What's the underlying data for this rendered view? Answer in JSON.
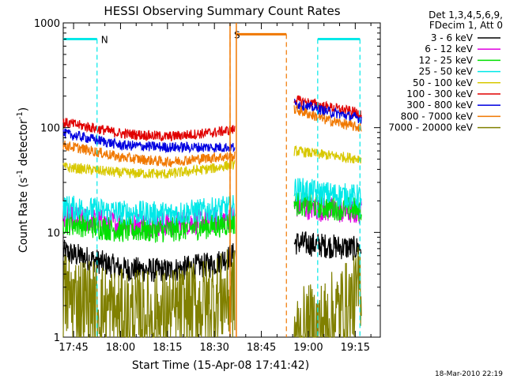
{
  "chart_data": {
    "type": "line",
    "title": "HESSI Observing Summary Count Rates",
    "xlabel": "Start Time (15-Apr-08 17:41:42)",
    "ylabel_main": "Count Rate (s",
    "ylabel_sup1": "-1",
    "ylabel_mid": " detector",
    "ylabel_sup2": "-1",
    "ylabel_end": ")",
    "y_scale": "log",
    "ylim": [
      1,
      1000
    ],
    "xlim": [
      "17:41:42",
      "19:23:00"
    ],
    "y_ticks": [
      "1",
      "10",
      "100",
      "1000"
    ],
    "x_ticks": [
      {
        "label": "17:45",
        "t": "17:45"
      },
      {
        "label": "18:00",
        "t": "18:00"
      },
      {
        "label": "18:15",
        "t": "18:15"
      },
      {
        "label": "18:30",
        "t": "18:30"
      },
      {
        "label": "18:45",
        "t": "18:45"
      },
      {
        "label": "19:00",
        "t": "19:00"
      },
      {
        "label": "19:15",
        "t": "19:15"
      }
    ],
    "legend_header": [
      "Det 1,3,4,5,6,9,",
      "FDecim 1, Att 0"
    ],
    "legend_position": "right",
    "data_gap": [
      "18:36:30",
      "18:55:30"
    ],
    "series": [
      {
        "name": "3 - 6 keV",
        "color": "#000000",
        "x": [
          "17:41:42",
          "18:00",
          "18:15",
          "18:30",
          "18:36:30",
          "18:55:30",
          "19:05",
          "19:15",
          "19:17"
        ],
        "y": [
          6.5,
          4.5,
          4.3,
          5.0,
          6.2,
          8.0,
          7.5,
          7.0,
          7.2
        ]
      },
      {
        "name": "6 - 12 keV",
        "color": "#e000e0",
        "x": [
          "17:41:42",
          "18:00",
          "18:15",
          "18:30",
          "18:36:30",
          "18:55:30",
          "19:05",
          "19:15",
          "19:17"
        ],
        "y": [
          14.0,
          12.0,
          12.0,
          13.0,
          14.0,
          18.0,
          16.5,
          15.5,
          15.8
        ]
      },
      {
        "name": "12 - 25 keV",
        "color": "#00e000",
        "x": [
          "17:41:42",
          "18:00",
          "18:15",
          "18:30",
          "18:36:30",
          "18:55:30",
          "19:05",
          "19:15",
          "19:17"
        ],
        "y": [
          12.5,
          10.5,
          10.5,
          11.5,
          12.5,
          19.0,
          17.5,
          16.5,
          16.5
        ]
      },
      {
        "name": "25 - 50 keV",
        "color": "#00e8e8",
        "x": [
          "17:41:42",
          "18:00",
          "18:15",
          "18:30",
          "18:36:30",
          "18:55:30",
          "19:05",
          "19:15",
          "19:17"
        ],
        "y": [
          17.5,
          15.5,
          15.0,
          16.5,
          17.5,
          26.0,
          23.5,
          22.0,
          22.0
        ]
      },
      {
        "name": "50 - 100 keV",
        "color": "#d8c800",
        "x": [
          "17:41:42",
          "18:00",
          "18:15",
          "18:30",
          "18:36:30",
          "18:55:30",
          "19:05",
          "19:15",
          "19:17"
        ],
        "y": [
          42.0,
          37.0,
          36.0,
          41.0,
          45.0,
          60.0,
          55.0,
          51.0,
          51.0
        ]
      },
      {
        "name": "100 - 300 keV",
        "color": "#e00000",
        "x": [
          "17:41:42",
          "18:00",
          "18:15",
          "18:30",
          "18:36:30",
          "18:55:30",
          "19:05",
          "19:15",
          "19:17"
        ],
        "y": [
          112.0,
          88.0,
          82.0,
          90.0,
          96.0,
          185.0,
          160.0,
          140.0,
          138.0
        ]
      },
      {
        "name": "300 - 800 keV",
        "color": "#0000e0",
        "x": [
          "17:41:42",
          "18:00",
          "18:15",
          "18:30",
          "18:36:30",
          "18:55:30",
          "19:05",
          "19:15",
          "19:17"
        ],
        "y": [
          88.0,
          68.0,
          65.0,
          65.0,
          65.0,
          170.0,
          145.0,
          125.0,
          122.0
        ]
      },
      {
        "name": "800 - 7000 keV",
        "color": "#f07800",
        "x": [
          "17:41:42",
          "18:00",
          "18:15",
          "18:30",
          "18:36:30",
          "18:55:30",
          "19:05",
          "19:15",
          "19:17"
        ],
        "y": [
          68.0,
          52.0,
          47.0,
          52.0,
          53.0,
          150.0,
          120.0,
          102.0,
          100.0
        ]
      },
      {
        "name": "7000 - 20000 keV",
        "color": "#808000",
        "x": [
          "17:41:42",
          "18:00",
          "18:15",
          "18:30",
          "18:36:30",
          "18:55:30",
          "19:05",
          "19:15",
          "19:17"
        ],
        "y": [
          2.5,
          1.6,
          1.6,
          2.2,
          2.6,
          1.0,
          1.3,
          2.2,
          3.5
        ]
      }
    ],
    "flags": [
      {
        "label": "N",
        "color": "#00e8e8",
        "y": 700,
        "segments": [
          [
            "17:41:42",
            "17:52:30"
          ],
          [
            "19:03:00",
            "19:16:30"
          ]
        ],
        "boundaries": [
          "17:52:30",
          "19:03:00",
          "19:16:30"
        ]
      },
      {
        "label": "S",
        "color": "#f07800",
        "y": 780,
        "segments": [
          [
            "18:37:00",
            "18:53:00"
          ]
        ],
        "boundaries": [
          "18:35:00",
          "18:53:00"
        ]
      }
    ],
    "saa_markers": [
      "18:35:00",
      "18:37:00"
    ]
  },
  "footer": {
    "timestamp": "18-Mar-2010 22:19"
  },
  "legend": {
    "header_line1": "Det 1,3,4,5,6,9,",
    "header_line2": "FDecim 1, Att 0"
  }
}
